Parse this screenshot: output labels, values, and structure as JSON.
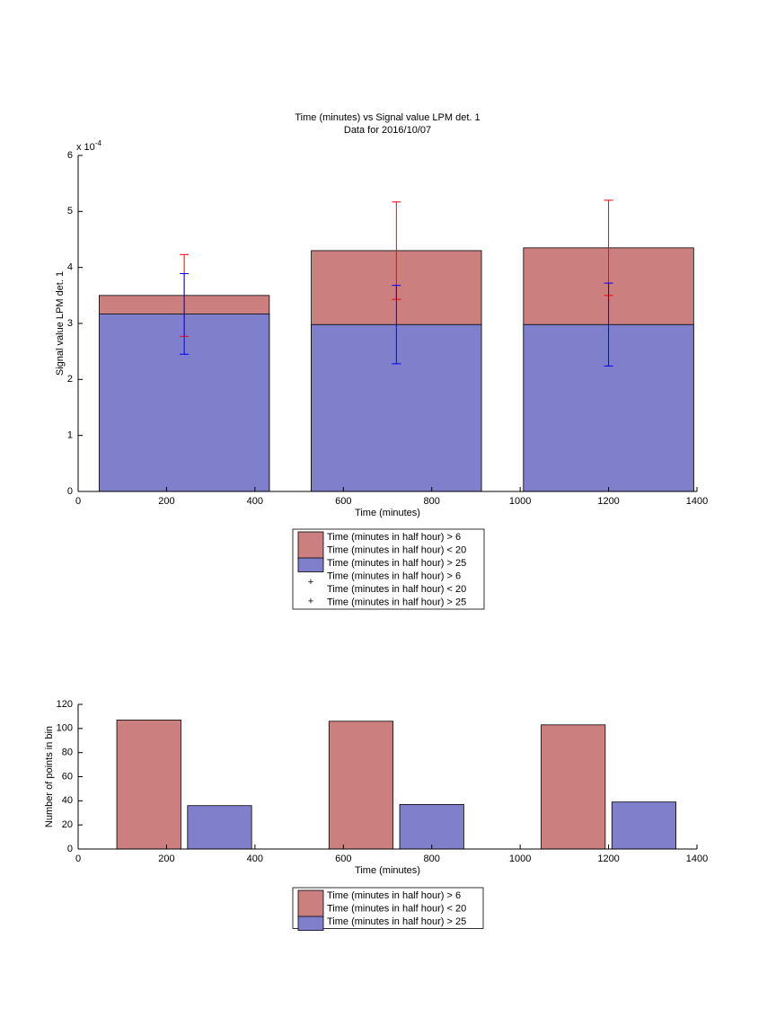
{
  "chart_data": [
    {
      "type": "bar",
      "barmode": "overlay",
      "title": "Time (minutes) vs Signal value LPM det. 1",
      "subtitle": "Data for 2016/10/07",
      "xlabel": "Time (minutes)",
      "ylabel": "Signal value LPM det. 1",
      "y_multiplier": {
        "base": "x 10",
        "exponent": "-4"
      },
      "x": [
        240,
        720,
        1200
      ],
      "xlim": [
        0,
        1400
      ],
      "xticks": [
        0,
        200,
        400,
        600,
        800,
        1000,
        1200,
        1400
      ],
      "ylim": [
        0,
        6
      ],
      "yticks": [
        0,
        1,
        2,
        3,
        4,
        5,
        6
      ],
      "series": [
        {
          "name": [
            "Time (minutes in half hour) > 6",
            "Time (minutes in half hour) < 20"
          ],
          "color": "#cc7f7f",
          "error_color": "#ff0000",
          "values": [
            3.5,
            4.3,
            4.35
          ],
          "errors": [
            0.73,
            0.87,
            0.85
          ]
        },
        {
          "name": [
            "Time (minutes in half hour) > 25"
          ],
          "color": "#7f7fcc",
          "error_color": "#0000ff",
          "values": [
            3.17,
            2.98,
            2.98
          ],
          "errors": [
            0.72,
            0.7,
            0.74
          ]
        }
      ]
    },
    {
      "type": "bar",
      "barmode": "group",
      "xlabel": "Time (minutes)",
      "ylabel": "Number of points in bin",
      "x": [
        240,
        720,
        1200
      ],
      "xlim": [
        0,
        1400
      ],
      "xticks": [
        0,
        200,
        400,
        600,
        800,
        1000,
        1200,
        1400
      ],
      "ylim": [
        0,
        120
      ],
      "yticks": [
        0,
        20,
        40,
        60,
        80,
        100,
        120
      ],
      "series": [
        {
          "name": [
            "Time (minutes in half hour) > 6",
            "Time (minutes in half hour) < 20"
          ],
          "color": "#cc7f7f",
          "values": [
            107,
            106,
            103
          ]
        },
        {
          "name": [
            "Time (minutes in half hour) > 25"
          ],
          "color": "#7f7fcc",
          "values": [
            36,
            37,
            39
          ]
        }
      ]
    }
  ]
}
